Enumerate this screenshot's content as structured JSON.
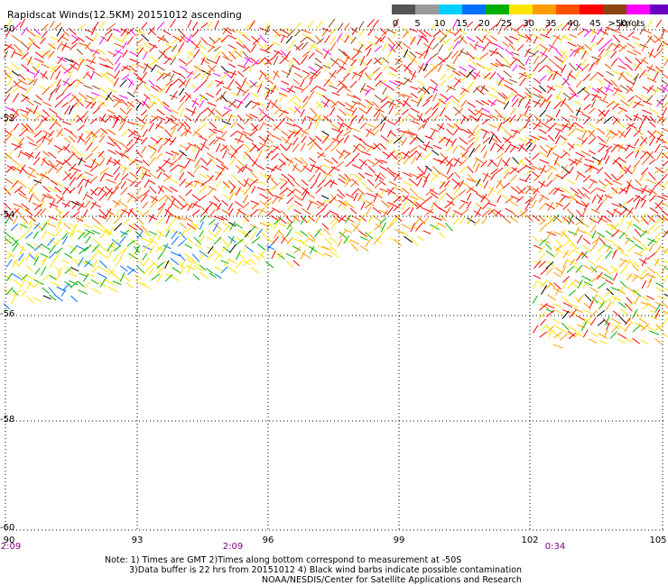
{
  "title": "Rapidscat Winds(12.5KM) 20151012 ascending",
  "legend": {
    "labels": [
      "0",
      "5",
      "10",
      "15",
      "20",
      "25",
      "30",
      "35",
      "40",
      "45",
      ">50"
    ],
    "units": "knots",
    "colors": [
      "#555555",
      "#9a9a9a",
      "#00d0ff",
      "#0070ff",
      "#00b000",
      "#ffe400",
      "#ff9c00",
      "#ff5000",
      "#ff0000",
      "#8b4513",
      "#ff00ff",
      "#6a00c0"
    ]
  },
  "axes": {
    "lat_labels": [
      "-50",
      "-52",
      "-54",
      "-56",
      "-58",
      "-60"
    ],
    "lon_labels": [
      "90",
      "93",
      "96",
      "99",
      "102",
      "105"
    ],
    "time_labels": [
      "2:09",
      "2:09",
      "0:34"
    ]
  },
  "notes": {
    "line1": "Note: 1) Times are GMT 2)Times along bottom correspond to measurement at -50S",
    "line2": "3)Data buffer is 22 hrs from 20151012 4) Black wind barbs indicate possible contamination",
    "credit": "NOAA/NESDIS/Center for Satellite Applications and Research"
  }
}
